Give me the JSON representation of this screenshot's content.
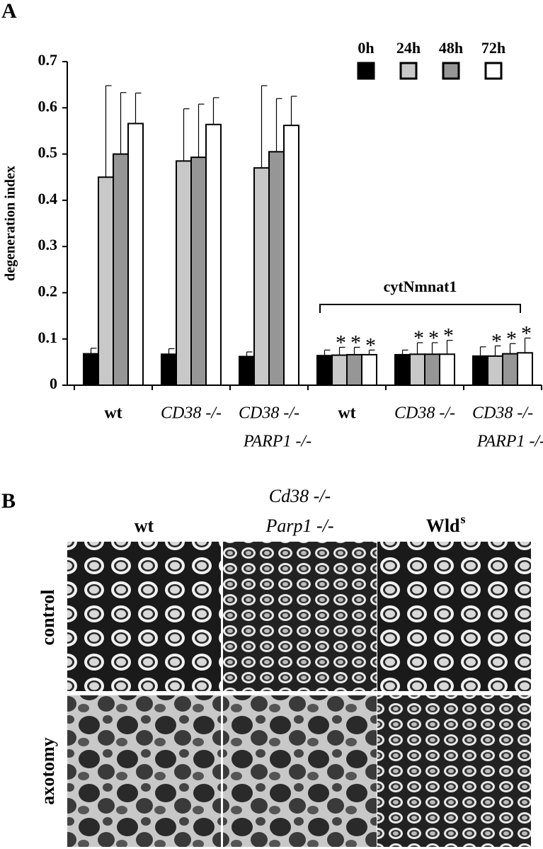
{
  "panel_a_label": "A",
  "chart_data": {
    "type": "bar",
    "y_label": "degeneration index",
    "categories": [
      [
        "wt"
      ],
      [
        "CD38 -/-"
      ],
      [
        "CD38 -/-",
        "PARP1 -/-"
      ],
      [
        "wt"
      ],
      [
        "CD38 -/-"
      ],
      [
        "CD38 -/-",
        "PARP1 -/-"
      ]
    ],
    "category_italic": [
      false,
      true,
      true,
      false,
      true,
      true
    ],
    "series": [
      {
        "name": "0h",
        "color": "#000000",
        "values": [
          0.068,
          0.067,
          0.062,
          0.064,
          0.066,
          0.063
        ],
        "errors": [
          0.012,
          0.012,
          0.01,
          0.012,
          0.01,
          0.02
        ]
      },
      {
        "name": "24h",
        "color": "#c8c8c8",
        "values": [
          0.45,
          0.485,
          0.47,
          0.065,
          0.067,
          0.063
        ],
        "errors": [
          0.198,
          0.113,
          0.178,
          0.017,
          0.025,
          0.022
        ]
      },
      {
        "name": "48h",
        "color": "#969696",
        "values": [
          0.5,
          0.493,
          0.505,
          0.066,
          0.067,
          0.068
        ],
        "errors": [
          0.133,
          0.115,
          0.115,
          0.016,
          0.025,
          0.022
        ]
      },
      {
        "name": "72h",
        "color": "#ffffff",
        "values": [
          0.566,
          0.564,
          0.562,
          0.066,
          0.067,
          0.07
        ],
        "errors": [
          0.066,
          0.058,
          0.063,
          0.01,
          0.03,
          0.032
        ]
      }
    ],
    "ylim": [
      0,
      0.7
    ],
    "yticks": [
      0,
      0.1,
      0.2,
      0.3,
      0.4,
      0.5,
      0.6,
      0.7
    ],
    "grid": false,
    "legend": "top-right",
    "bracket": {
      "label": "cytNmnat1",
      "from": 3,
      "to": 5
    },
    "annotations": [
      {
        "text": "*",
        "category": 3,
        "series": 1
      },
      {
        "text": "*",
        "category": 3,
        "series": 2
      },
      {
        "text": "*",
        "category": 3,
        "series": 3
      },
      {
        "text": "*",
        "category": 4,
        "series": 1
      },
      {
        "text": "*",
        "category": 4,
        "series": 2
      },
      {
        "text": "*",
        "category": 4,
        "series": 3
      },
      {
        "text": "*",
        "category": 5,
        "series": 1
      },
      {
        "text": "*",
        "category": 5,
        "series": 2
      },
      {
        "text": "*",
        "category": 5,
        "series": 3
      }
    ]
  },
  "panel_b": {
    "label": "B",
    "columns": [
      [
        "wt"
      ],
      [
        "Cd38 -/-",
        "Parp1 -/-"
      ],
      [
        "Wld",
        "s"
      ]
    ],
    "rows": [
      "control",
      "axotomy"
    ]
  }
}
